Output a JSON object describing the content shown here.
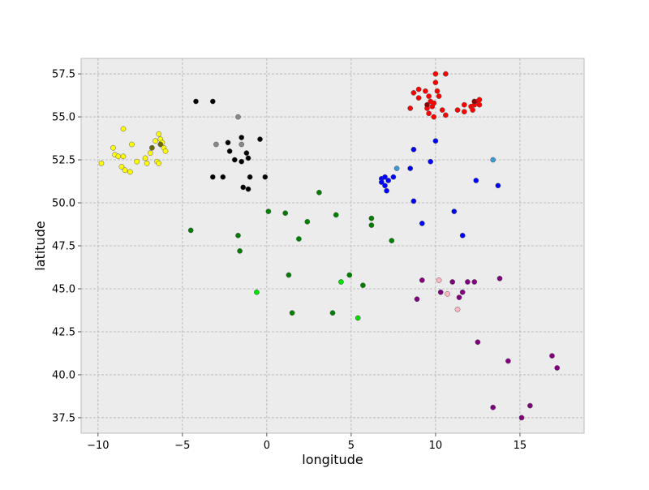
{
  "chart_data": {
    "type": "scatter",
    "title": "",
    "xlabel": "longitude",
    "ylabel": "latitude",
    "xlim": [
      -11,
      18.8
    ],
    "ylim": [
      36.6,
      58.4
    ],
    "xticks": [
      -10,
      -5,
      0,
      5,
      10,
      15
    ],
    "yticks": [
      37.5,
      40.0,
      42.5,
      45.0,
      47.5,
      50.0,
      52.5,
      55.0,
      57.5
    ],
    "grid": true,
    "legend": "none",
    "series": [
      {
        "color": "#ffff00",
        "points": [
          [
            -9.8,
            52.3
          ],
          [
            -9.1,
            53.2
          ],
          [
            -9.0,
            52.8
          ],
          [
            -8.8,
            52.7
          ],
          [
            -8.5,
            52.7
          ],
          [
            -8.5,
            54.3
          ],
          [
            -8.6,
            52.1
          ],
          [
            -8.4,
            51.9
          ],
          [
            -8.1,
            51.8
          ],
          [
            -8.0,
            53.4
          ],
          [
            -7.7,
            52.4
          ],
          [
            -7.2,
            52.6
          ],
          [
            -7.1,
            52.3
          ],
          [
            -6.9,
            52.9
          ],
          [
            -6.6,
            53.6
          ],
          [
            -6.5,
            52.4
          ],
          [
            -6.4,
            52.3
          ],
          [
            -6.4,
            54.0
          ],
          [
            -6.3,
            53.7
          ],
          [
            -6.2,
            53.5
          ],
          [
            -6.1,
            53.2
          ],
          [
            -6.0,
            53.0
          ]
        ]
      },
      {
        "color": "#6b6b00",
        "points": [
          [
            -6.8,
            53.2
          ],
          [
            -6.3,
            53.4
          ]
        ]
      },
      {
        "color": "#000000",
        "points": [
          [
            -4.2,
            55.9
          ],
          [
            -3.2,
            55.9
          ],
          [
            -3.2,
            51.5
          ],
          [
            -2.6,
            51.5
          ],
          [
            -2.3,
            53.5
          ],
          [
            -2.2,
            53.0
          ],
          [
            -1.9,
            52.5
          ],
          [
            -1.5,
            53.8
          ],
          [
            -1.5,
            52.4
          ],
          [
            -1.4,
            50.9
          ],
          [
            -1.2,
            52.9
          ],
          [
            -1.1,
            52.6
          ],
          [
            -1.1,
            50.8
          ],
          [
            -1.0,
            51.5
          ],
          [
            -0.4,
            53.7
          ],
          [
            -0.1,
            51.5
          ]
        ]
      },
      {
        "color": "#888888",
        "points": [
          [
            -3.0,
            53.4
          ],
          [
            -1.7,
            55.0
          ],
          [
            -1.5,
            53.4
          ]
        ]
      },
      {
        "color": "#ff0000",
        "points": [
          [
            8.5,
            55.5
          ],
          [
            8.7,
            56.4
          ],
          [
            9.0,
            56.6
          ],
          [
            9.0,
            56.1
          ],
          [
            9.4,
            56.5
          ],
          [
            9.5,
            55.5
          ],
          [
            9.6,
            55.2
          ],
          [
            9.6,
            56.2
          ],
          [
            9.7,
            55.9
          ],
          [
            9.8,
            55.6
          ],
          [
            9.9,
            55.0
          ],
          [
            9.9,
            55.8
          ],
          [
            10.0,
            57.0
          ],
          [
            10.0,
            57.5
          ],
          [
            10.1,
            56.5
          ],
          [
            10.2,
            56.2
          ],
          [
            10.4,
            55.4
          ],
          [
            10.6,
            57.5
          ],
          [
            10.6,
            55.1
          ],
          [
            11.3,
            55.4
          ],
          [
            11.7,
            55.7
          ],
          [
            11.7,
            55.3
          ],
          [
            12.1,
            55.6
          ],
          [
            12.2,
            55.4
          ],
          [
            12.3,
            55.7
          ],
          [
            12.5,
            55.9
          ],
          [
            12.6,
            56.0
          ],
          [
            12.6,
            55.7
          ]
        ]
      },
      {
        "color": "#8b0000",
        "points": [
          [
            9.5,
            55.7
          ],
          [
            12.3,
            55.9
          ]
        ]
      },
      {
        "color": "#0000ff",
        "points": [
          [
            6.8,
            51.4
          ],
          [
            6.8,
            51.2
          ],
          [
            7.0,
            51.5
          ],
          [
            7.0,
            51.0
          ],
          [
            7.1,
            50.7
          ],
          [
            7.2,
            51.3
          ],
          [
            7.5,
            51.5
          ],
          [
            8.5,
            52.0
          ],
          [
            8.7,
            53.1
          ],
          [
            8.7,
            50.1
          ],
          [
            9.2,
            48.8
          ],
          [
            9.7,
            52.4
          ],
          [
            10.0,
            53.6
          ],
          [
            11.1,
            49.5
          ],
          [
            11.6,
            48.1
          ],
          [
            12.4,
            51.3
          ],
          [
            13.7,
            51.0
          ]
        ]
      },
      {
        "color": "#3a9ad9",
        "points": [
          [
            7.7,
            52.0
          ],
          [
            13.4,
            52.5
          ]
        ]
      },
      {
        "color": "#008000",
        "points": [
          [
            -4.5,
            48.4
          ],
          [
            -1.7,
            48.1
          ],
          [
            -1.6,
            47.2
          ],
          [
            0.1,
            49.5
          ],
          [
            1.1,
            49.4
          ],
          [
            1.3,
            45.8
          ],
          [
            1.5,
            43.6
          ],
          [
            1.9,
            47.9
          ],
          [
            2.4,
            48.9
          ],
          [
            3.1,
            50.6
          ],
          [
            3.9,
            43.6
          ],
          [
            4.1,
            49.3
          ],
          [
            4.9,
            45.8
          ],
          [
            5.7,
            45.2
          ],
          [
            6.2,
            49.1
          ],
          [
            6.2,
            48.7
          ],
          [
            7.4,
            47.8
          ]
        ]
      },
      {
        "color": "#00dd00",
        "points": [
          [
            -0.6,
            44.8
          ],
          [
            4.4,
            45.4
          ],
          [
            5.4,
            43.3
          ]
        ]
      },
      {
        "color": "#800080",
        "points": [
          [
            8.9,
            44.4
          ],
          [
            9.2,
            45.5
          ],
          [
            10.3,
            44.8
          ],
          [
            11.0,
            45.4
          ],
          [
            11.4,
            44.5
          ],
          [
            11.6,
            44.8
          ],
          [
            11.9,
            45.4
          ],
          [
            12.3,
            45.4
          ],
          [
            12.5,
            41.9
          ],
          [
            13.4,
            38.1
          ],
          [
            13.8,
            45.6
          ],
          [
            14.3,
            40.8
          ],
          [
            15.1,
            37.5
          ],
          [
            15.6,
            38.2
          ],
          [
            16.9,
            41.1
          ],
          [
            17.2,
            40.4
          ]
        ]
      },
      {
        "color": "#ffb6c1",
        "points": [
          [
            10.2,
            45.5
          ],
          [
            10.7,
            44.7
          ],
          [
            11.3,
            43.8
          ]
        ]
      }
    ]
  }
}
